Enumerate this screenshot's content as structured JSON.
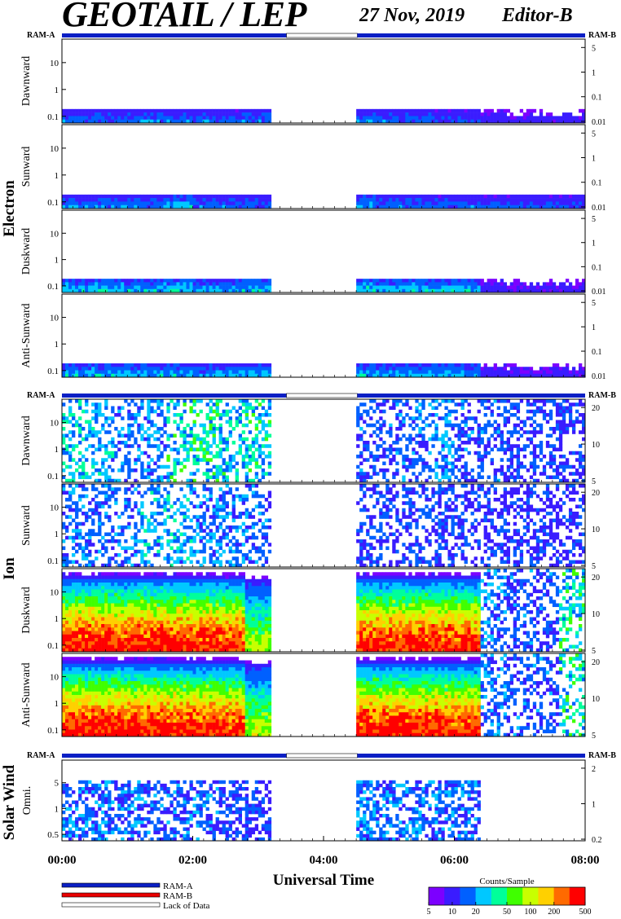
{
  "header": {
    "title": "GEOTAIL / LEP",
    "date": "27 Nov, 2019",
    "editor": "Editor-B"
  },
  "colors": {
    "ram_a": "#0b1fc4",
    "ram_b": "#e80000",
    "lack": "#ffffff",
    "scale": [
      "#7c00ff",
      "#3a1cff",
      "#0060ff",
      "#00c8ff",
      "#00ff9a",
      "#40ff00",
      "#c8ff00",
      "#ffd000",
      "#ff6a00",
      "#ff0000"
    ]
  },
  "legend": {
    "ram_a": "RAM-A",
    "ram_b": "RAM-B",
    "lack": "Lack of Data"
  },
  "colorbar": {
    "title": "Counts/Sample",
    "ticks": [
      "5",
      "10",
      "20",
      "50",
      "100",
      "200",
      "500"
    ]
  },
  "chart_data": {
    "type": "heatmap",
    "xlabel": "Universal Time",
    "xlim": [
      "00:00",
      "08:00"
    ],
    "x_ticks": [
      "00:00",
      "02:00",
      "04:00",
      "06:00",
      "08:00"
    ],
    "data_gap": [
      "03:26",
      "04:31"
    ],
    "color_scale": {
      "label": "Counts/Sample",
      "min": 5,
      "max": 500,
      "log": true
    },
    "ram_bar_labels": {
      "left": "RAM-A",
      "right": "RAM-B"
    },
    "groups": [
      {
        "name": "Electron",
        "panels": [
          {
            "label": "Dawnward",
            "left_ticks": [
              "10",
              "1",
              "0.1"
            ],
            "right_ticks": [
              "5",
              "1",
              "0.1",
              "0.01"
            ],
            "intensity": [
              0.22,
              0.22,
              0.22,
              0.24,
              0.23,
              0.22,
              0.22,
              0.22,
              0.0,
              0.0,
              0.24,
              0.26,
              0.22,
              0.22,
              0.21,
              0.2,
              0.14,
              0.12,
              0.12,
              0.12
            ]
          },
          {
            "label": "Sunward",
            "left_ticks": [
              "10",
              "1",
              "0.1"
            ],
            "right_ticks": [
              "5",
              "1",
              "0.1",
              "0.01"
            ],
            "intensity": [
              0.26,
              0.24,
              0.24,
              0.24,
              0.3,
              0.24,
              0.23,
              0.23,
              0.0,
              0.0,
              0.24,
              0.3,
              0.24,
              0.23,
              0.22,
              0.22,
              0.2,
              0.2,
              0.2,
              0.2
            ]
          },
          {
            "label": "Duskward",
            "left_ticks": [
              "10",
              "1",
              "0.1"
            ],
            "right_ticks": [
              "5",
              "1",
              "0.1",
              "0.01"
            ],
            "intensity": [
              0.32,
              0.34,
              0.32,
              0.32,
              0.34,
              0.3,
              0.3,
              0.32,
              0.0,
              0.0,
              0.32,
              0.34,
              0.32,
              0.32,
              0.32,
              0.32,
              0.14,
              0.12,
              0.12,
              0.12
            ]
          },
          {
            "label": "Anti-Sunward",
            "left_ticks": [
              "10",
              "1",
              "0.1"
            ],
            "right_ticks": [
              "5",
              "1",
              "0.1",
              "0.01"
            ],
            "intensity": [
              0.3,
              0.32,
              0.3,
              0.3,
              0.32,
              0.28,
              0.28,
              0.3,
              0.0,
              0.0,
              0.3,
              0.32,
              0.3,
              0.3,
              0.3,
              0.3,
              0.14,
              0.12,
              0.12,
              0.12
            ]
          }
        ]
      },
      {
        "name": "Ion",
        "panels": [
          {
            "label": "Dawnward",
            "left_ticks": [
              "10",
              "1",
              "0.1"
            ],
            "right_ticks": [
              "20",
              "10",
              "5"
            ],
            "intensity": [
              0.35,
              0.3,
              0.25,
              0.28,
              0.38,
              0.4,
              0.36,
              0.38,
              0.0,
              0.0,
              0.22,
              0.22,
              0.22,
              0.24,
              0.28,
              0.22,
              0.22,
              0.2,
              0.2,
              0.2
            ]
          },
          {
            "label": "Sunward",
            "left_ticks": [
              "10",
              "1",
              "0.1"
            ],
            "right_ticks": [
              "20",
              "10",
              "5"
            ],
            "intensity": [
              0.26,
              0.24,
              0.24,
              0.32,
              0.32,
              0.28,
              0.26,
              0.24,
              0.0,
              0.0,
              0.2,
              0.2,
              0.2,
              0.2,
              0.2,
              0.2,
              0.18,
              0.18,
              0.18,
              0.18
            ]
          },
          {
            "label": "Duskward",
            "left_ticks": [
              "10",
              "1",
              "0.1"
            ],
            "right_ticks": [
              "20",
              "10",
              "5"
            ],
            "intensity": [
              0.96,
              0.96,
              0.95,
              0.96,
              0.95,
              0.94,
              0.92,
              0.6,
              0.0,
              0.0,
              0.94,
              0.94,
              0.94,
              0.94,
              0.94,
              0.92,
              0.26,
              0.22,
              0.22,
              0.4
            ]
          },
          {
            "label": "Anti-Sunward",
            "left_ticks": [
              "10",
              "1",
              "0.1"
            ],
            "right_ticks": [
              "20",
              "10",
              "5"
            ],
            "intensity": [
              0.97,
              0.97,
              0.96,
              0.97,
              0.96,
              0.95,
              0.93,
              0.62,
              0.0,
              0.0,
              0.95,
              0.95,
              0.95,
              0.95,
              0.95,
              0.93,
              0.26,
              0.22,
              0.22,
              0.4
            ]
          }
        ]
      },
      {
        "name": "Solar Wind",
        "panels": [
          {
            "label": "Omni.",
            "left_ticks": [
              "5",
              "1",
              "0.5"
            ],
            "right_ticks": [
              "2",
              "1",
              "0.2"
            ],
            "intensity": [
              0.24,
              0.24,
              0.24,
              0.22,
              0.22,
              0.22,
              0.2,
              0.18,
              0.0,
              0.0,
              0.26,
              0.26,
              0.24,
              0.24,
              0.24,
              0.22,
              0.0,
              0.0,
              0.0,
              0.04
            ]
          }
        ]
      }
    ]
  }
}
